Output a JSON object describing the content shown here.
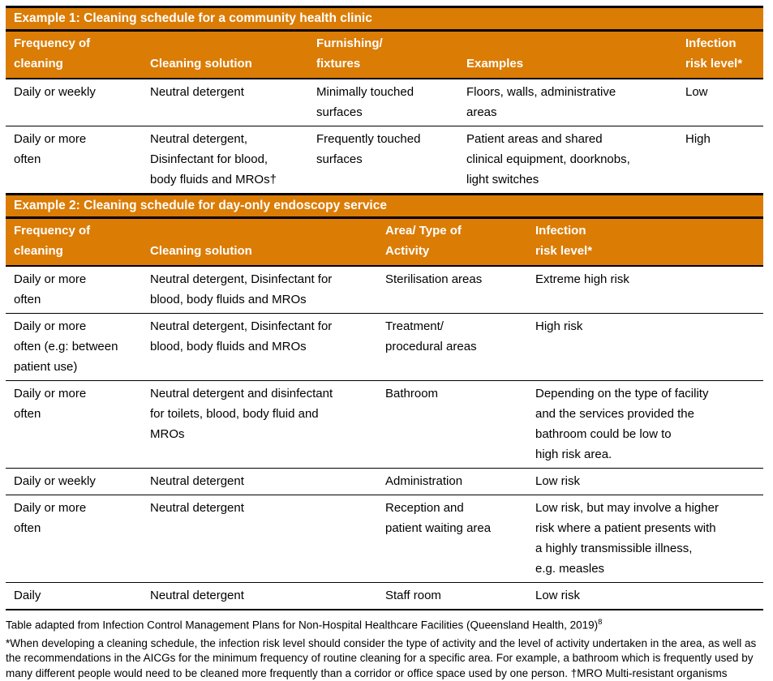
{
  "page": {
    "accent_orange": "#DB7C05",
    "rule_black": "#000000",
    "header_text_color": "#ffffff",
    "body_text_color": "#000000"
  },
  "table1": {
    "title": "Example 1: Cleaning schedule for a community health clinic",
    "headers": [
      "Frequency of\ncleaning",
      "Cleaning solution",
      "Furnishing/\nfixtures",
      "Examples",
      "Infection\nrisk level*"
    ],
    "rows": [
      [
        "Daily or weekly",
        "Neutral detergent",
        "Minimally touched\nsurfaces",
        "Floors, walls, administrative\nareas",
        "Low"
      ],
      [
        "Daily or more\noften",
        "Neutral detergent,\nDisinfectant for blood,\nbody fluids and MROs†",
        "Frequently touched\nsurfaces",
        "Patient areas and shared\nclinical equipment, doorknobs,\nlight switches",
        "High"
      ]
    ]
  },
  "table2": {
    "title": "Example 2: Cleaning schedule for day-only endoscopy service",
    "headers": [
      "Frequency of\ncleaning",
      "Cleaning solution",
      "Area/ Type of\nActivity",
      "Infection\nrisk level*"
    ],
    "rows": [
      [
        "Daily or more\noften",
        "Neutral detergent, Disinfectant for\nblood, body fluids and MROs",
        "Sterilisation areas",
        "Extreme high risk"
      ],
      [
        "Daily or more\noften (e.g: between\npatient use)",
        "Neutral detergent, Disinfectant for\nblood, body fluids and MROs",
        "Treatment/\nprocedural areas",
        "High risk"
      ],
      [
        "Daily or more\noften",
        "Neutral detergent and disinfectant\nfor toilets, blood, body fluid and\nMROs",
        "Bathroom",
        "Depending on the type of facility\nand the services provided the\nbathroom could be low to\nhigh risk area."
      ],
      [
        "Daily or weekly",
        "Neutral detergent",
        "Administration",
        "Low risk"
      ],
      [
        "Daily or more\noften",
        "Neutral detergent",
        "Reception and\npatient waiting area",
        "Low risk, but may involve a higher\nrisk where a patient presents with\na highly transmissible illness,\ne.g. measles"
      ],
      [
        "Daily",
        "Neutral detergent",
        "Staff room",
        "Low risk"
      ]
    ]
  },
  "footnotes": {
    "source": "Table adapted from Infection Control Management Plans for Non-Hospital Healthcare Facilities (Queensland Health, 2019)",
    "source_ref": "8",
    "note": "*When developing a cleaning schedule, the infection risk level should consider the type of activity and the level of activity undertaken in the area, as well as the recommendations in the AICGs for the minimum frequency of routine cleaning for a specific area. For example, a bathroom which is frequently used by many different people would need to be cleaned more frequently than a corridor or office space used by one person. †MRO Multi-resistant organisms"
  }
}
